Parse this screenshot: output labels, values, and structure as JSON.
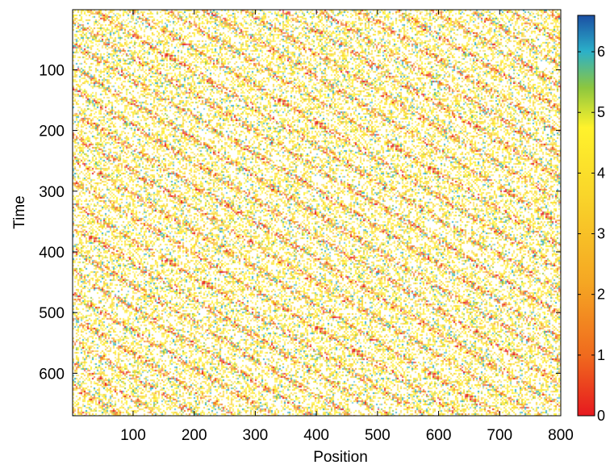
{
  "chart_data": {
    "type": "heatmap",
    "title": "",
    "xlabel": "Position",
    "ylabel": "Time",
    "xlim": [
      1,
      800
    ],
    "ylim": [
      1,
      670
    ],
    "y_inverted": true,
    "xticks": [
      100,
      200,
      300,
      400,
      500,
      600,
      700,
      800
    ],
    "yticks": [
      100,
      200,
      300,
      400,
      500,
      600
    ],
    "grid": false,
    "colorbar": {
      "range": [
        0,
        6.6
      ],
      "ticks": [
        0,
        1,
        2,
        3,
        4,
        5,
        6
      ],
      "colormap": [
        "#e6191f",
        "#f06a1e",
        "#f5a623",
        "#f9d52a",
        "#fff22c",
        "#8cc63f",
        "#2bb0c9",
        "#1b4fa3"
      ],
      "placement": "right"
    },
    "pattern": {
      "description": "space-time diagram of velocities; diagonal bands of low values drifting to higher position over time",
      "band_slope_position_per_time": 1.65,
      "band_spacing_position": 62,
      "empty_value_color": "#ffffff"
    }
  }
}
